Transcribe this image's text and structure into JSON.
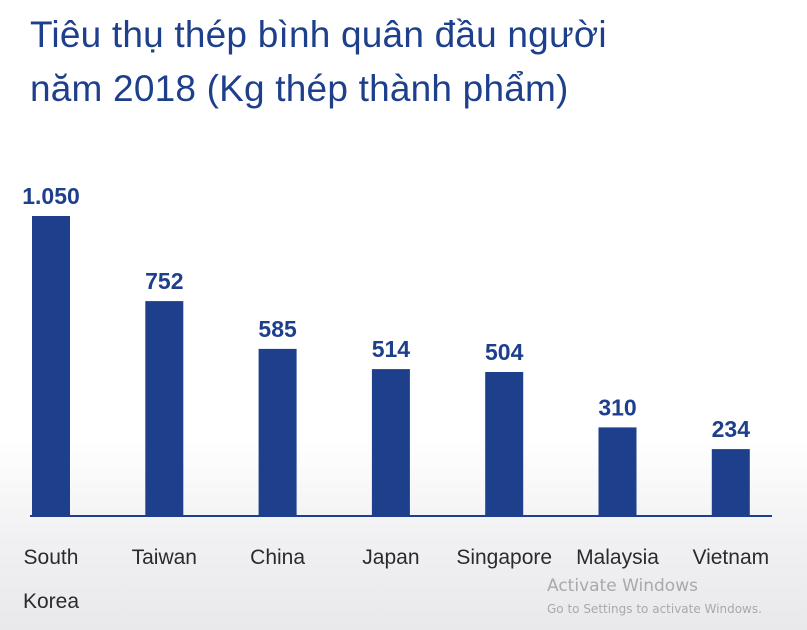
{
  "title_line1": "Tiêu thụ thép bình quân đầu người",
  "title_line2": "năm 2018 (Kg thép thành phẩm)",
  "chart_data": {
    "type": "bar",
    "title": "Tiêu thụ thép bình quân đầu người năm 2018 (Kg thép thành phẩm)",
    "categories": [
      [
        "South",
        "Korea"
      ],
      [
        "Taiwan"
      ],
      [
        "China"
      ],
      [
        "Japan"
      ],
      [
        "Singapore"
      ],
      [
        "Malaysia"
      ],
      [
        "Vietnam"
      ]
    ],
    "values": [
      1050,
      752,
      585,
      514,
      504,
      310,
      234
    ],
    "value_labels": [
      "1.050",
      "752",
      "585",
      "514",
      "504",
      "310",
      "234"
    ],
    "xlabel": "",
    "ylabel": "",
    "ylim": [
      0,
      1050
    ],
    "grid": false,
    "legend": "none",
    "bar_color": "#1d3f8c",
    "label_color": "#1d3f8c",
    "axis_color": "#1d3f8c"
  },
  "watermark": {
    "line1": "Activate Windows",
    "line2": "Go to Settings to activate Windows."
  }
}
